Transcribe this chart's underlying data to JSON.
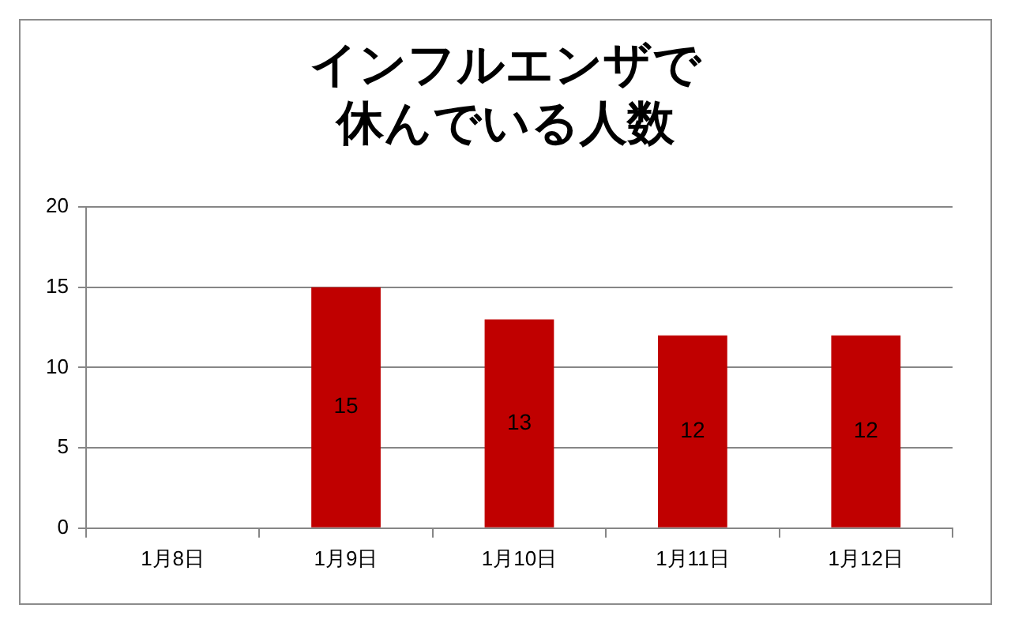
{
  "chart_data": {
    "type": "bar",
    "title": "インフルエンザで休んでいる人数",
    "categories": [
      "1月8日",
      "1月9日",
      "1月10日",
      "1月11日",
      "1月12日"
    ],
    "values": [
      null,
      15,
      13,
      12,
      12
    ],
    "color": "#c00000",
    "ylim": [
      0,
      20
    ],
    "yticks": [
      0,
      5,
      10,
      15,
      20
    ],
    "grid": "y",
    "data_labels": true,
    "legend": false
  }
}
